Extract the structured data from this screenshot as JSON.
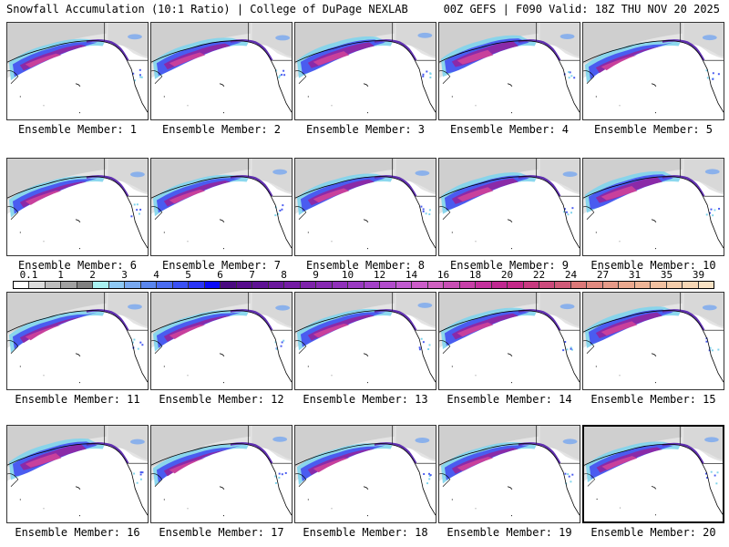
{
  "header": {
    "title_left": "Snowfall Accumulation (10:1 Ratio) | College of DuPage NEXLAB",
    "title_right": "00Z GEFS | F090 Valid: 18Z THU NOV 20 2025"
  },
  "panel_label_prefix": "Ensemble Member: ",
  "members": [
    {
      "label": "Ensemble Member: 1"
    },
    {
      "label": "Ensemble Member: 2"
    },
    {
      "label": "Ensemble Member: 3"
    },
    {
      "label": "Ensemble Member: 4"
    },
    {
      "label": "Ensemble Member: 5"
    },
    {
      "label": "Ensemble Member: 6"
    },
    {
      "label": "Ensemble Member: 7"
    },
    {
      "label": "Ensemble Member: 8"
    },
    {
      "label": "Ensemble Member: 9"
    },
    {
      "label": "Ensemble Member: 10"
    },
    {
      "label": "Ensemble Member: 11"
    },
    {
      "label": "Ensemble Member: 12"
    },
    {
      "label": "Ensemble Member: 13"
    },
    {
      "label": "Ensemble Member: 14"
    },
    {
      "label": "Ensemble Member: 15"
    },
    {
      "label": "Ensemble Member: 16"
    },
    {
      "label": "Ensemble Member: 17"
    },
    {
      "label": "Ensemble Member: 18"
    },
    {
      "label": "Ensemble Member: 19"
    },
    {
      "label": "Ensemble Member: 20"
    }
  ],
  "colorbar": {
    "labels": [
      "0.1",
      "1",
      "2",
      "3",
      "4",
      "5",
      "6",
      "7",
      "8",
      "9",
      "10",
      "12",
      "14",
      "16",
      "18",
      "20",
      "22",
      "24",
      "27",
      "31",
      "35",
      "39"
    ],
    "colors": [
      "#ffffff",
      "#dcdcdc",
      "#bdbdbd",
      "#a0a0a0",
      "#808080",
      "#a8f0f0",
      "#8ec8f4",
      "#78a8f0",
      "#5a86ee",
      "#4a6cf2",
      "#3a50f4",
      "#2a34f6",
      "#0a0af8",
      "#4a0a80",
      "#560c8c",
      "#5e1294",
      "#6a189c",
      "#741ca4",
      "#7e22aa",
      "#8628b2",
      "#9030ba",
      "#9a3ac2",
      "#a442c8",
      "#b24ccc",
      "#c05ad0",
      "#cc5cc8",
      "#d060c0",
      "#c84eb4",
      "#c840a8",
      "#c4309c",
      "#c02890",
      "#c42888",
      "#c83a80",
      "#cc4a7c",
      "#d05a78",
      "#dc7878",
      "#e28a80",
      "#e69a88",
      "#eaa88e",
      "#eeb496",
      "#f0c0a0",
      "#f4ccaa",
      "#f6d6b4",
      "#f8e2c4"
    ]
  }
}
